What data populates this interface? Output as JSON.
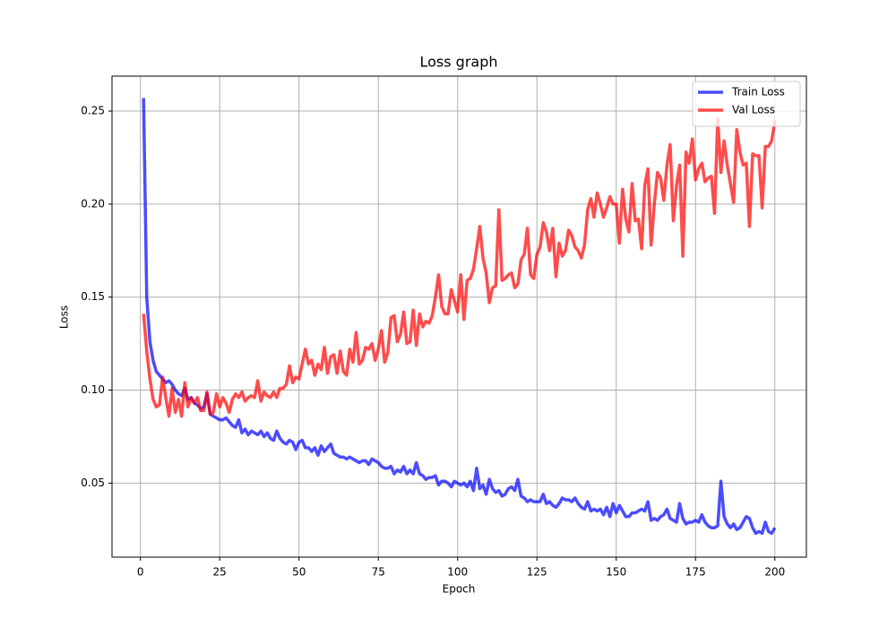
{
  "chart_data": {
    "type": "line",
    "title": "Loss graph",
    "x_label": "Epoch",
    "y_label": "Loss",
    "x": [
      1,
      2,
      3,
      4,
      5,
      6,
      7,
      8,
      9,
      10,
      11,
      12,
      13,
      14,
      15,
      16,
      17,
      18,
      19,
      20,
      21,
      22,
      23,
      24,
      25,
      26,
      27,
      28,
      29,
      30,
      31,
      32,
      33,
      34,
      35,
      36,
      37,
      38,
      39,
      40,
      41,
      42,
      43,
      44,
      45,
      46,
      47,
      48,
      49,
      50,
      51,
      52,
      53,
      54,
      55,
      56,
      57,
      58,
      59,
      60,
      61,
      62,
      63,
      64,
      65,
      66,
      67,
      68,
      69,
      70,
      71,
      72,
      73,
      74,
      75,
      76,
      77,
      78,
      79,
      80,
      81,
      82,
      83,
      84,
      85,
      86,
      87,
      88,
      89,
      90,
      91,
      92,
      93,
      94,
      95,
      96,
      97,
      98,
      99,
      100,
      101,
      102,
      103,
      104,
      105,
      106,
      107,
      108,
      109,
      110,
      111,
      112,
      113,
      114,
      115,
      116,
      117,
      118,
      119,
      120,
      121,
      122,
      123,
      124,
      125,
      126,
      127,
      128,
      129,
      130,
      131,
      132,
      133,
      134,
      135,
      136,
      137,
      138,
      139,
      140,
      141,
      142,
      143,
      144,
      145,
      146,
      147,
      148,
      149,
      150,
      151,
      152,
      153,
      154,
      155,
      156,
      157,
      158,
      159,
      160,
      161,
      162,
      163,
      164,
      165,
      166,
      167,
      168,
      169,
      170,
      171,
      172,
      173,
      174,
      175,
      176,
      177,
      178,
      179,
      180,
      181,
      182,
      183,
      184,
      185,
      186,
      187,
      188,
      189,
      190,
      191,
      192,
      193,
      194,
      195,
      196,
      197,
      198,
      199,
      200
    ],
    "series": [
      {
        "name": "Train Loss",
        "color": "#0000ff",
        "values": [
          0.257,
          0.15,
          0.126,
          0.116,
          0.11,
          0.108,
          0.106,
          0.104,
          0.105,
          0.103,
          0.1,
          0.098,
          0.097,
          0.101,
          0.095,
          0.096,
          0.093,
          0.092,
          0.09,
          0.091,
          0.098,
          0.087,
          0.086,
          0.085,
          0.084,
          0.084,
          0.085,
          0.083,
          0.081,
          0.08,
          0.084,
          0.077,
          0.079,
          0.076,
          0.078,
          0.077,
          0.076,
          0.078,
          0.075,
          0.077,
          0.074,
          0.073,
          0.078,
          0.074,
          0.072,
          0.071,
          0.073,
          0.072,
          0.068,
          0.072,
          0.073,
          0.069,
          0.069,
          0.067,
          0.069,
          0.065,
          0.07,
          0.067,
          0.069,
          0.071,
          0.066,
          0.065,
          0.064,
          0.064,
          0.063,
          0.064,
          0.063,
          0.062,
          0.061,
          0.062,
          0.062,
          0.06,
          0.063,
          0.062,
          0.061,
          0.059,
          0.058,
          0.058,
          0.059,
          0.055,
          0.057,
          0.056,
          0.059,
          0.055,
          0.057,
          0.055,
          0.061,
          0.055,
          0.054,
          0.052,
          0.053,
          0.053,
          0.054,
          0.049,
          0.051,
          0.051,
          0.05,
          0.048,
          0.051,
          0.05,
          0.049,
          0.05,
          0.048,
          0.051,
          0.046,
          0.058,
          0.047,
          0.049,
          0.044,
          0.052,
          0.047,
          0.045,
          0.046,
          0.043,
          0.044,
          0.047,
          0.048,
          0.046,
          0.052,
          0.043,
          0.042,
          0.04,
          0.041,
          0.04,
          0.04,
          0.04,
          0.044,
          0.039,
          0.04,
          0.038,
          0.037,
          0.039,
          0.042,
          0.041,
          0.041,
          0.04,
          0.042,
          0.039,
          0.037,
          0.036,
          0.04,
          0.035,
          0.036,
          0.035,
          0.036,
          0.033,
          0.037,
          0.032,
          0.039,
          0.034,
          0.038,
          0.035,
          0.032,
          0.032,
          0.034,
          0.034,
          0.035,
          0.036,
          0.035,
          0.04,
          0.03,
          0.031,
          0.03,
          0.032,
          0.033,
          0.036,
          0.031,
          0.03,
          0.029,
          0.039,
          0.031,
          0.028,
          0.029,
          0.029,
          0.03,
          0.029,
          0.033,
          0.029,
          0.027,
          0.026,
          0.026,
          0.027,
          0.051,
          0.032,
          0.028,
          0.026,
          0.028,
          0.025,
          0.026,
          0.029,
          0.032,
          0.031,
          0.026,
          0.023,
          0.024,
          0.023,
          0.029,
          0.024,
          0.023,
          0.026
        ]
      },
      {
        "name": "Val Loss",
        "color": "#ff0000",
        "values": [
          0.141,
          0.121,
          0.106,
          0.095,
          0.091,
          0.092,
          0.107,
          0.096,
          0.086,
          0.101,
          0.088,
          0.095,
          0.086,
          0.104,
          0.091,
          0.096,
          0.093,
          0.096,
          0.089,
          0.089,
          0.099,
          0.087,
          0.088,
          0.098,
          0.091,
          0.096,
          0.093,
          0.088,
          0.095,
          0.098,
          0.096,
          0.099,
          0.094,
          0.096,
          0.097,
          0.096,
          0.105,
          0.094,
          0.099,
          0.097,
          0.096,
          0.099,
          0.096,
          0.101,
          0.101,
          0.103,
          0.113,
          0.104,
          0.107,
          0.106,
          0.114,
          0.122,
          0.114,
          0.116,
          0.108,
          0.114,
          0.111,
          0.123,
          0.109,
          0.118,
          0.119,
          0.109,
          0.121,
          0.11,
          0.108,
          0.122,
          0.115,
          0.131,
          0.114,
          0.116,
          0.123,
          0.122,
          0.125,
          0.116,
          0.122,
          0.132,
          0.115,
          0.12,
          0.139,
          0.14,
          0.126,
          0.13,
          0.142,
          0.125,
          0.126,
          0.143,
          0.124,
          0.141,
          0.134,
          0.137,
          0.136,
          0.14,
          0.15,
          0.162,
          0.145,
          0.141,
          0.141,
          0.154,
          0.148,
          0.142,
          0.162,
          0.138,
          0.159,
          0.16,
          0.165,
          0.176,
          0.188,
          0.171,
          0.163,
          0.147,
          0.155,
          0.156,
          0.197,
          0.159,
          0.16,
          0.162,
          0.163,
          0.155,
          0.157,
          0.17,
          0.173,
          0.187,
          0.162,
          0.16,
          0.173,
          0.177,
          0.19,
          0.185,
          0.175,
          0.187,
          0.161,
          0.179,
          0.172,
          0.175,
          0.186,
          0.183,
          0.177,
          0.175,
          0.171,
          0.178,
          0.197,
          0.203,
          0.193,
          0.206,
          0.2,
          0.193,
          0.198,
          0.204,
          0.2,
          0.2,
          0.179,
          0.208,
          0.192,
          0.185,
          0.211,
          0.191,
          0.192,
          0.176,
          0.21,
          0.219,
          0.178,
          0.2,
          0.217,
          0.214,
          0.202,
          0.221,
          0.232,
          0.191,
          0.21,
          0.221,
          0.172,
          0.228,
          0.222,
          0.235,
          0.213,
          0.219,
          0.222,
          0.212,
          0.214,
          0.215,
          0.195,
          0.246,
          0.217,
          0.234,
          0.221,
          0.211,
          0.201,
          0.24,
          0.228,
          0.221,
          0.222,
          0.188,
          0.227,
          0.226,
          0.226,
          0.198,
          0.231,
          0.231,
          0.234,
          0.245
        ]
      }
    ],
    "xlim": [
      -8.95,
      209.95
    ],
    "xticks": [
      0,
      25,
      50,
      75,
      100,
      125,
      150,
      175,
      200
    ],
    "ylim": [
      0.0102,
      0.2688
    ],
    "yticks": [
      0.05,
      {
        "value": 0.1,
        "label": "0.10"
      },
      0.15,
      {
        "value": 0.2,
        "label": "0.20"
      },
      0.25
    ],
    "grid": true,
    "legend": "upper-right"
  }
}
